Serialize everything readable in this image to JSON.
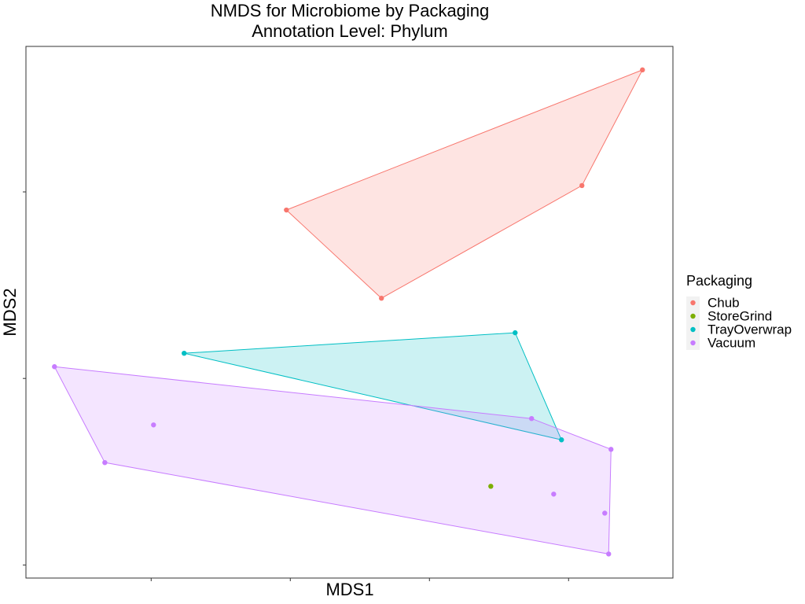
{
  "chart_data": {
    "type": "scatter",
    "title": "NMDS for Microbiome by Packaging",
    "subtitle": "Annotation Level: Phylum",
    "x_label": "MDS1",
    "y_label": "MDS2",
    "legend_title": "Packaging",
    "legend_position": "right",
    "hulls": true,
    "grid": false,
    "xlim": [
      -0.29,
      0.175
    ],
    "ylim": [
      -0.107,
      0.178
    ],
    "xticks": [
      -0.2,
      -0.1,
      0,
      0.1
    ],
    "yticks": [
      -0.1,
      0,
      0.1
    ],
    "series": [
      {
        "name": "Chub",
        "color": "#F8766D",
        "x": [
          0.1531,
          0.1096,
          -0.1028,
          -0.0345
        ],
        "y": [
          0.1654,
          0.1034,
          0.0903,
          0.043
        ]
      },
      {
        "name": "StoreGrind",
        "color": "#7CAE00",
        "x": [
          0.0441
        ],
        "y": [
          -0.0578
        ]
      },
      {
        "name": "TrayOverwrap",
        "color": "#00BFC4",
        "x": [
          -0.1763,
          0.0616,
          0.0949
        ],
        "y": [
          0.0135,
          0.0245,
          -0.0329
        ]
      },
      {
        "name": "Vacuum",
        "color": "#C77CFF",
        "x": [
          -0.2695,
          -0.1983,
          -0.2333,
          0.0734,
          0.1305,
          0.0893,
          0.126,
          0.1288
        ],
        "y": [
          0.0063,
          -0.0249,
          -0.0451,
          -0.0215,
          -0.038,
          -0.062,
          -0.0722,
          -0.0941
        ]
      }
    ]
  }
}
